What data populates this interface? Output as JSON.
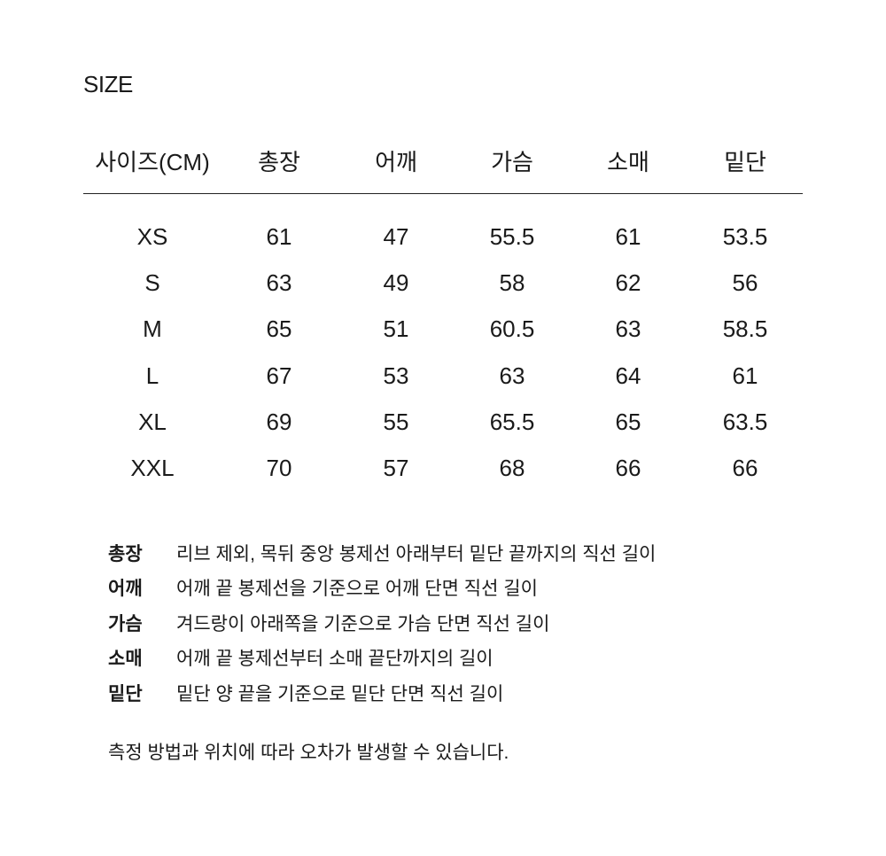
{
  "title": "SIZE",
  "table": {
    "headers": [
      "사이즈(CM)",
      "총장",
      "어깨",
      "가슴",
      "소매",
      "밑단"
    ],
    "rows": [
      [
        "XS",
        "61",
        "47",
        "55.5",
        "61",
        "53.5"
      ],
      [
        "S",
        "63",
        "49",
        "58",
        "62",
        "56"
      ],
      [
        "M",
        "65",
        "51",
        "60.5",
        "63",
        "58.5"
      ],
      [
        "L",
        "67",
        "53",
        "63",
        "64",
        "61"
      ],
      [
        "XL",
        "69",
        "55",
        "65.5",
        "65",
        "63.5"
      ],
      [
        "XXL",
        "70",
        "57",
        "68",
        "66",
        "66"
      ]
    ]
  },
  "definitions": [
    {
      "label": "총장",
      "text": "리브 제외, 목뒤 중앙 봉제선 아래부터 밑단 끝까지의 직선 길이"
    },
    {
      "label": "어깨",
      "text": "어깨 끝 봉제선을 기준으로 어깨 단면 직선 길이"
    },
    {
      "label": "가슴",
      "text": "겨드랑이 아래쪽을 기준으로 가슴 단면 직선 길이"
    },
    {
      "label": "소매",
      "text": "어깨 끝 봉제선부터 소매 끝단까지의 길이"
    },
    {
      "label": "밑단",
      "text": "밑단 양 끝을 기준으로 밑단 단면 직선 길이"
    }
  ],
  "note": "측정 방법과 위치에 따라 오차가 발생할 수 있습니다."
}
